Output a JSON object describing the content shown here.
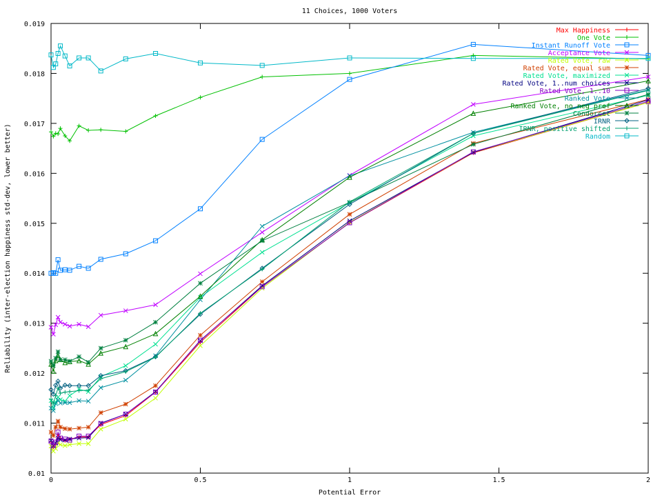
{
  "chart_data": {
    "type": "line",
    "title": "11 Choices, 1000 Voters",
    "xlabel": "Potential Error",
    "ylabel": "Reliability (inter-election happiness std-dev, lower better)",
    "xlim": [
      0,
      2
    ],
    "ylim": [
      0.01,
      0.019
    ],
    "xticks": [
      0,
      0.5,
      1,
      1.5,
      2
    ],
    "xtick_labels": [
      "0",
      "0.5",
      "1",
      "1.5",
      "2"
    ],
    "yticks": [
      0.01,
      0.011,
      0.012,
      0.013,
      0.014,
      0.015,
      0.016,
      0.017,
      0.018,
      0.019
    ],
    "ytick_labels": [
      "0.01",
      "0.011",
      "0.012",
      "0.013",
      "0.014",
      "0.015",
      "0.016",
      "0.017",
      "0.018",
      "0.019"
    ],
    "grid": false,
    "legend_position": "top-right",
    "x": [
      0,
      0.0078,
      0.0156,
      0.0234,
      0.03125,
      0.0469,
      0.0625,
      0.09375,
      0.125,
      0.1667,
      0.25,
      0.35,
      0.5,
      0.7071,
      1,
      1.4142,
      2
    ],
    "series": [
      {
        "name": "Max Happiness",
        "color": "#ff0000",
        "marker": "plus",
        "values": [
          0.01063,
          0.01052,
          0.01059,
          0.01078,
          0.0107,
          0.01065,
          0.01068,
          0.01072,
          0.01072,
          0.01097,
          0.01115,
          0.01162,
          0.01262,
          0.01373,
          0.01501,
          0.01641,
          0.01742
        ]
      },
      {
        "name": "One Vote",
        "color": "#00c000",
        "marker": "plus",
        "values": [
          0.01683,
          0.01674,
          0.0168,
          0.01679,
          0.0169,
          0.01675,
          0.01665,
          0.01695,
          0.01686,
          0.01687,
          0.01684,
          0.01715,
          0.01752,
          0.01793,
          0.018,
          0.01836,
          0.01829
        ]
      },
      {
        "name": "Instant Runoff Vote",
        "color": "#0080ff",
        "marker": "square",
        "values": [
          0.014,
          0.01401,
          0.014,
          0.01427,
          0.01406,
          0.01407,
          0.01406,
          0.01414,
          0.0141,
          0.01428,
          0.01439,
          0.01465,
          0.01529,
          0.01668,
          0.01788,
          0.01858,
          0.01836
        ]
      },
      {
        "name": "Acceptance Vote",
        "color": "#c000ff",
        "marker": "x",
        "values": [
          0.01292,
          0.01278,
          0.01297,
          0.01312,
          0.01302,
          0.01298,
          0.01294,
          0.01298,
          0.01293,
          0.01316,
          0.01325,
          0.01337,
          0.01399,
          0.01482,
          0.01596,
          0.01738,
          0.01793
        ]
      },
      {
        "name": "Rated Vote, raw",
        "color": "#c0ff00",
        "marker": "x",
        "values": [
          0.01054,
          0.01044,
          0.01049,
          0.0106,
          0.01057,
          0.01055,
          0.01057,
          0.01059,
          0.01059,
          0.01088,
          0.01108,
          0.0115,
          0.01255,
          0.0137,
          0.01502,
          0.01642,
          0.01742
        ]
      },
      {
        "name": "Rated Vote, equal sum",
        "color": "#d04000",
        "marker": "star",
        "values": [
          0.01082,
          0.01075,
          0.01092,
          0.01104,
          0.01092,
          0.01089,
          0.01088,
          0.0109,
          0.01092,
          0.01121,
          0.01138,
          0.01175,
          0.01276,
          0.01383,
          0.01518,
          0.0166,
          0.01748
        ]
      },
      {
        "name": "Rated Vote, maximized",
        "color": "#00e090",
        "marker": "x",
        "values": [
          0.01145,
          0.0113,
          0.01142,
          0.01152,
          0.01147,
          0.01144,
          0.01155,
          0.01168,
          0.01163,
          0.01193,
          0.01215,
          0.01258,
          0.01352,
          0.01442,
          0.01541,
          0.01675,
          0.01756
        ]
      },
      {
        "name": "Rated Vote, 1..num choices",
        "color": "#000080",
        "marker": "x",
        "values": [
          0.01065,
          0.01055,
          0.0106,
          0.0107,
          0.01067,
          0.01066,
          0.01068,
          0.0107,
          0.01071,
          0.011,
          0.01118,
          0.01163,
          0.01265,
          0.01375,
          0.01505,
          0.01642,
          0.01747
        ]
      },
      {
        "name": "Rated Vote, 1..10",
        "color": "#8000c0",
        "marker": "square",
        "values": [
          0.01064,
          0.01055,
          0.01062,
          0.01082,
          0.0107,
          0.01068,
          0.01066,
          0.01074,
          0.01074,
          0.01099,
          0.01118,
          0.01162,
          0.01266,
          0.01373,
          0.01501,
          0.01643,
          0.01744
        ]
      },
      {
        "name": "Ranked Vote",
        "color": "#0090a0",
        "marker": "x",
        "values": [
          0.0113,
          0.01125,
          0.01139,
          0.01146,
          0.0114,
          0.01141,
          0.01141,
          0.01145,
          0.01144,
          0.01171,
          0.01186,
          0.01235,
          0.01347,
          0.01494,
          0.01595,
          0.01682,
          0.01767
        ]
      },
      {
        "name": "Ranked Vote, no neg pref",
        "color": "#008000",
        "marker": "triangle",
        "values": [
          0.01218,
          0.01204,
          0.01225,
          0.01235,
          0.01227,
          0.01221,
          0.01223,
          0.01225,
          0.01218,
          0.0124,
          0.01253,
          0.01279,
          0.01354,
          0.01467,
          0.01592,
          0.0172,
          0.01785
        ]
      },
      {
        "name": "Condorcet",
        "color": "#008040",
        "marker": "star",
        "values": [
          0.01224,
          0.01215,
          0.0123,
          0.01243,
          0.01227,
          0.01227,
          0.01224,
          0.01233,
          0.01222,
          0.0125,
          0.01266,
          0.01302,
          0.0138,
          0.01465,
          0.01542,
          0.01658,
          0.01758
        ]
      },
      {
        "name": "IRNR",
        "color": "#006080",
        "marker": "diamond",
        "values": [
          0.01167,
          0.01158,
          0.01176,
          0.01184,
          0.0117,
          0.01176,
          0.01175,
          0.01175,
          0.01175,
          0.01195,
          0.01205,
          0.01233,
          0.01318,
          0.0141,
          0.01538,
          0.0168,
          0.0177
        ]
      },
      {
        "name": "IRNR, positive shifted",
        "color": "#00a070",
        "marker": "plus",
        "values": [
          0.01148,
          0.0114,
          0.01155,
          0.0117,
          0.0116,
          0.01162,
          0.01163,
          0.01165,
          0.01166,
          0.01189,
          0.01203,
          0.01232,
          0.0132,
          0.01408,
          0.01543,
          0.0168,
          0.01766
        ]
      },
      {
        "name": "Random",
        "color": "#00b8c8",
        "marker": "square",
        "values": [
          0.01837,
          0.01812,
          0.01819,
          0.0184,
          0.01855,
          0.01835,
          0.01815,
          0.01831,
          0.01831,
          0.01805,
          0.01829,
          0.0184,
          0.01821,
          0.01816,
          0.01831,
          0.0183,
          0.0183
        ]
      }
    ]
  }
}
